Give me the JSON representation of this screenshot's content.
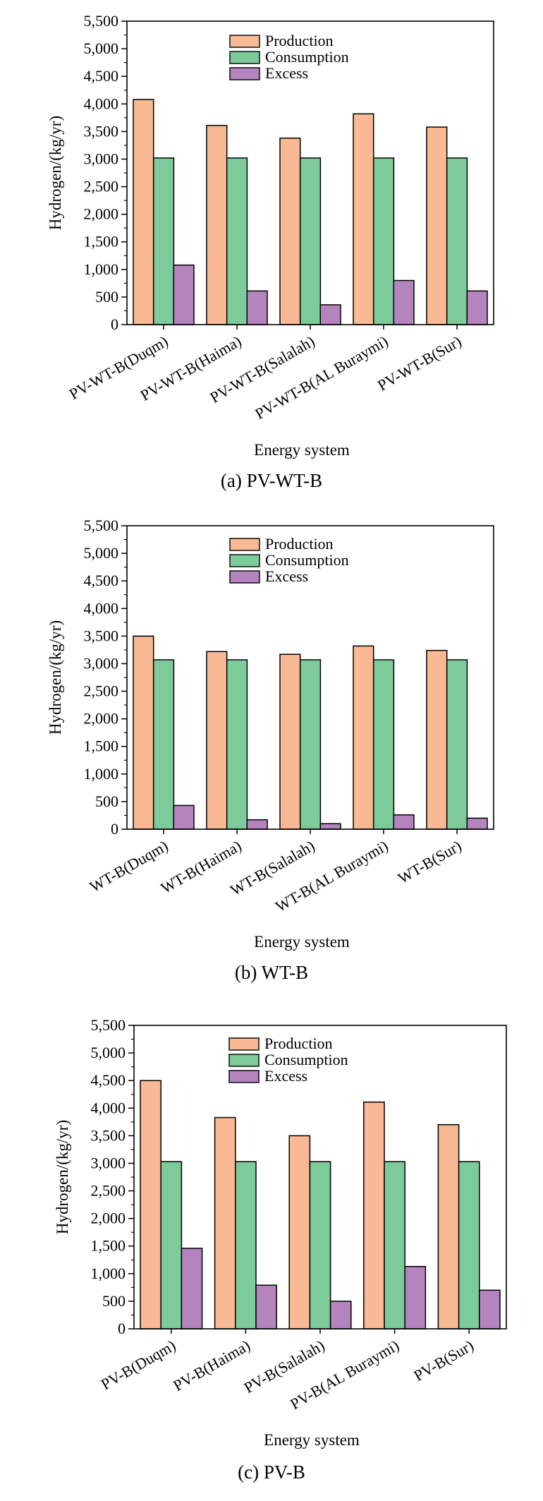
{
  "colors": {
    "production": "#F8B994",
    "consumption": "#7DCB9B",
    "excess": "#B584BF",
    "stroke": "#000000"
  },
  "chart_data": [
    {
      "type": "bar",
      "caption": "(a) PV-WT-B",
      "xlabel": "Energy system",
      "ylabel": "Hydrogen/(kg/yr)",
      "ylim": [
        0,
        5500
      ],
      "yticks": [
        "0",
        "500",
        "1,000",
        "1,500",
        "2,000",
        "2,500",
        "3,000",
        "3,500",
        "4,000",
        "4,500",
        "5,000",
        "5,500"
      ],
      "legend_position": "top-center",
      "categories": [
        "PV-WT-B(Duqm)",
        "PV-WT-B(Haima)",
        "PV-WT-B(Salalah)",
        "PV-WT-B(AL Buraymi)",
        "PV-WT-B(Sur)"
      ],
      "series": [
        {
          "name": "Production",
          "values": [
            4080,
            3610,
            3380,
            3820,
            3580
          ]
        },
        {
          "name": "Consumption",
          "values": [
            3020,
            3020,
            3020,
            3020,
            3020
          ]
        },
        {
          "name": "Excess",
          "values": [
            1080,
            610,
            360,
            800,
            610
          ]
        }
      ]
    },
    {
      "type": "bar",
      "caption": "(b) WT-B",
      "xlabel": "Energy system",
      "ylabel": "Hydrogen/(kg/yr)",
      "ylim": [
        0,
        5500
      ],
      "yticks": [
        "0",
        "500",
        "1,000",
        "1,500",
        "2,000",
        "2,500",
        "3,000",
        "3,500",
        "4,000",
        "4,500",
        "5,000",
        "5,500"
      ],
      "legend_position": "top-center",
      "categories": [
        "WT-B(Duqm)",
        "WT-B(Haima)",
        "WT-B(Salalah)",
        "WT-B(AL Buraymi)",
        "WT-B(Sur)"
      ],
      "series": [
        {
          "name": "Production",
          "values": [
            3500,
            3220,
            3170,
            3320,
            3240
          ]
        },
        {
          "name": "Consumption",
          "values": [
            3070,
            3070,
            3070,
            3070,
            3070
          ]
        },
        {
          "name": "Excess",
          "values": [
            430,
            170,
            100,
            260,
            200
          ]
        }
      ]
    },
    {
      "type": "bar",
      "caption": "(c) PV-B",
      "xlabel": "Energy system",
      "ylabel": "Hydrogen/(kg/yr)",
      "ylim": [
        0,
        5500
      ],
      "yticks": [
        "0",
        "500",
        "1,000",
        "1,500",
        "2,000",
        "2,500",
        "3,000",
        "3,500",
        "4,000",
        "4,500",
        "5,000",
        "5,500"
      ],
      "legend_position": "top-center",
      "categories": [
        "PV-B(Duqm)",
        "PV-B(Haima)",
        "PV-B(Salalah)",
        "PV-B(AL Buraymi)",
        "PV-B(Sur)"
      ],
      "series": [
        {
          "name": "Production",
          "values": [
            4500,
            3830,
            3500,
            4110,
            3700
          ]
        },
        {
          "name": "Consumption",
          "values": [
            3030,
            3030,
            3030,
            3030,
            3030
          ]
        },
        {
          "name": "Excess",
          "values": [
            1460,
            790,
            500,
            1130,
            700
          ]
        }
      ]
    }
  ]
}
